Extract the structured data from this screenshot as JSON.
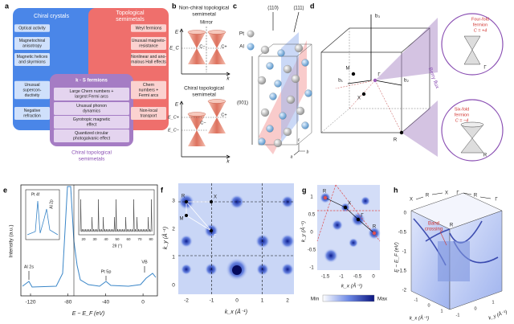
{
  "a": {
    "label": "a",
    "chiral": "Chiral crystals",
    "topological": [
      "Topological",
      "semimetals"
    ],
    "overlap": "k · S fermions",
    "chiral_topological": [
      "Chiral topological",
      "semimetals"
    ],
    "left": [
      [
        "Optical activity"
      ],
      [
        "Magnetochiral",
        "anisotropy"
      ],
      [
        "Magnetic helices",
        "and skyrmions"
      ],
      [
        "Unusual",
        "supercon-",
        "ductivity"
      ],
      [
        "Negative",
        "refraction"
      ]
    ],
    "right": [
      [
        "Weyl fermions"
      ],
      [
        "Unusual magneto-",
        "resistance"
      ],
      [
        "Nonlinear and ano-",
        "malous Hall effects"
      ],
      [
        "Chern",
        "numbers +",
        "Fermi arcs"
      ],
      [
        "Non-local",
        "transport"
      ]
    ],
    "center": [
      [
        "Large Chern numbers +",
        "largest Fermi arcs"
      ],
      [
        "Unusual phonon",
        "dynamics"
      ],
      [
        "Gyrotropic magnetic",
        "effect"
      ],
      [
        "Quantized circular",
        "photogalvanic effect"
      ]
    ]
  },
  "b": {
    "label": "b",
    "top_title": [
      "Non-chiral topological",
      "semimetal"
    ],
    "mirror": "Mirror",
    "bottom_title": [
      "Chiral topological",
      "semimetal"
    ],
    "energy": "E",
    "momentum": "k",
    "ec": "E_C",
    "ec_plus": "E_C+",
    "ec_minus": "E_C−",
    "c_minus": "C−",
    "c_plus": "C+"
  },
  "c": {
    "label": "c",
    "planes": [
      "(110)",
      "(111)",
      "(001)"
    ],
    "pt": "Pt",
    "al": "Al",
    "axes": [
      "a",
      "b",
      "c"
    ]
  },
  "d": {
    "label": "d",
    "vectors": [
      "b₃",
      "b₁",
      "b₂"
    ],
    "points": [
      "M",
      "X",
      "Γ",
      "R"
    ],
    "berry": "Berry flux",
    "four": [
      "Four-fold",
      "fermion",
      "C = +4"
    ],
    "four_point": "Γ",
    "six": [
      "Six-fold",
      "fermion",
      "C = −4"
    ],
    "six_point": "R"
  },
  "e": {
    "label": "e",
    "ylabel": "Intensity (a.u.)",
    "xlabel": "E − E_F (eV)",
    "xticks": [
      "-120",
      "-80",
      "-40",
      "0"
    ],
    "peaks": [
      "Al 2s",
      "Pt 5p",
      "VB"
    ],
    "inset_peaks": [
      "Pt 4f",
      "Al 2p"
    ],
    "inset_xticks": [
      "20",
      "30",
      "40",
      "50",
      "60",
      "70",
      "80"
    ],
    "inset_xlabel": "2θ (°)"
  },
  "f": {
    "label": "f",
    "xticks": [
      "-2",
      "-1",
      "0",
      "1",
      "2"
    ],
    "yticks": [
      "0",
      "1",
      "2",
      "3"
    ],
    "points": [
      "R",
      "X",
      "M",
      "Γ"
    ],
    "xlabel": "k_x (Å⁻¹)",
    "ylabel": "k_y (Å⁻¹)"
  },
  "g": {
    "label": "g",
    "xticks": [
      "-1.5",
      "-1",
      "-0.5",
      "0"
    ],
    "yticks": [
      "1",
      "0.5",
      "0",
      "-0.5",
      "-1"
    ],
    "points": [
      "R",
      "X",
      "Γ",
      "R"
    ],
    "xlabel": "k_x (Å⁻¹)",
    "ylabel": "k_y (Å⁻¹)",
    "colorbar": [
      "Min",
      "Max"
    ]
  },
  "h": {
    "label": "h",
    "path": [
      "X",
      "R",
      "X",
      "Γ",
      "R",
      "Γ"
    ],
    "top_point": "R",
    "crossing": [
      "Band",
      "crossing"
    ],
    "zlabel": "E − E_F (eV)",
    "zticks": [
      "0",
      "-0.5",
      "-1",
      "-1.5",
      "-2"
    ],
    "xlabel": "k_x (Å⁻¹)",
    "ylabel": "k_y (Å⁻¹)",
    "xticks": [
      "-1",
      "0",
      "1"
    ],
    "yticks": [
      "-1",
      "0",
      "1"
    ]
  }
}
